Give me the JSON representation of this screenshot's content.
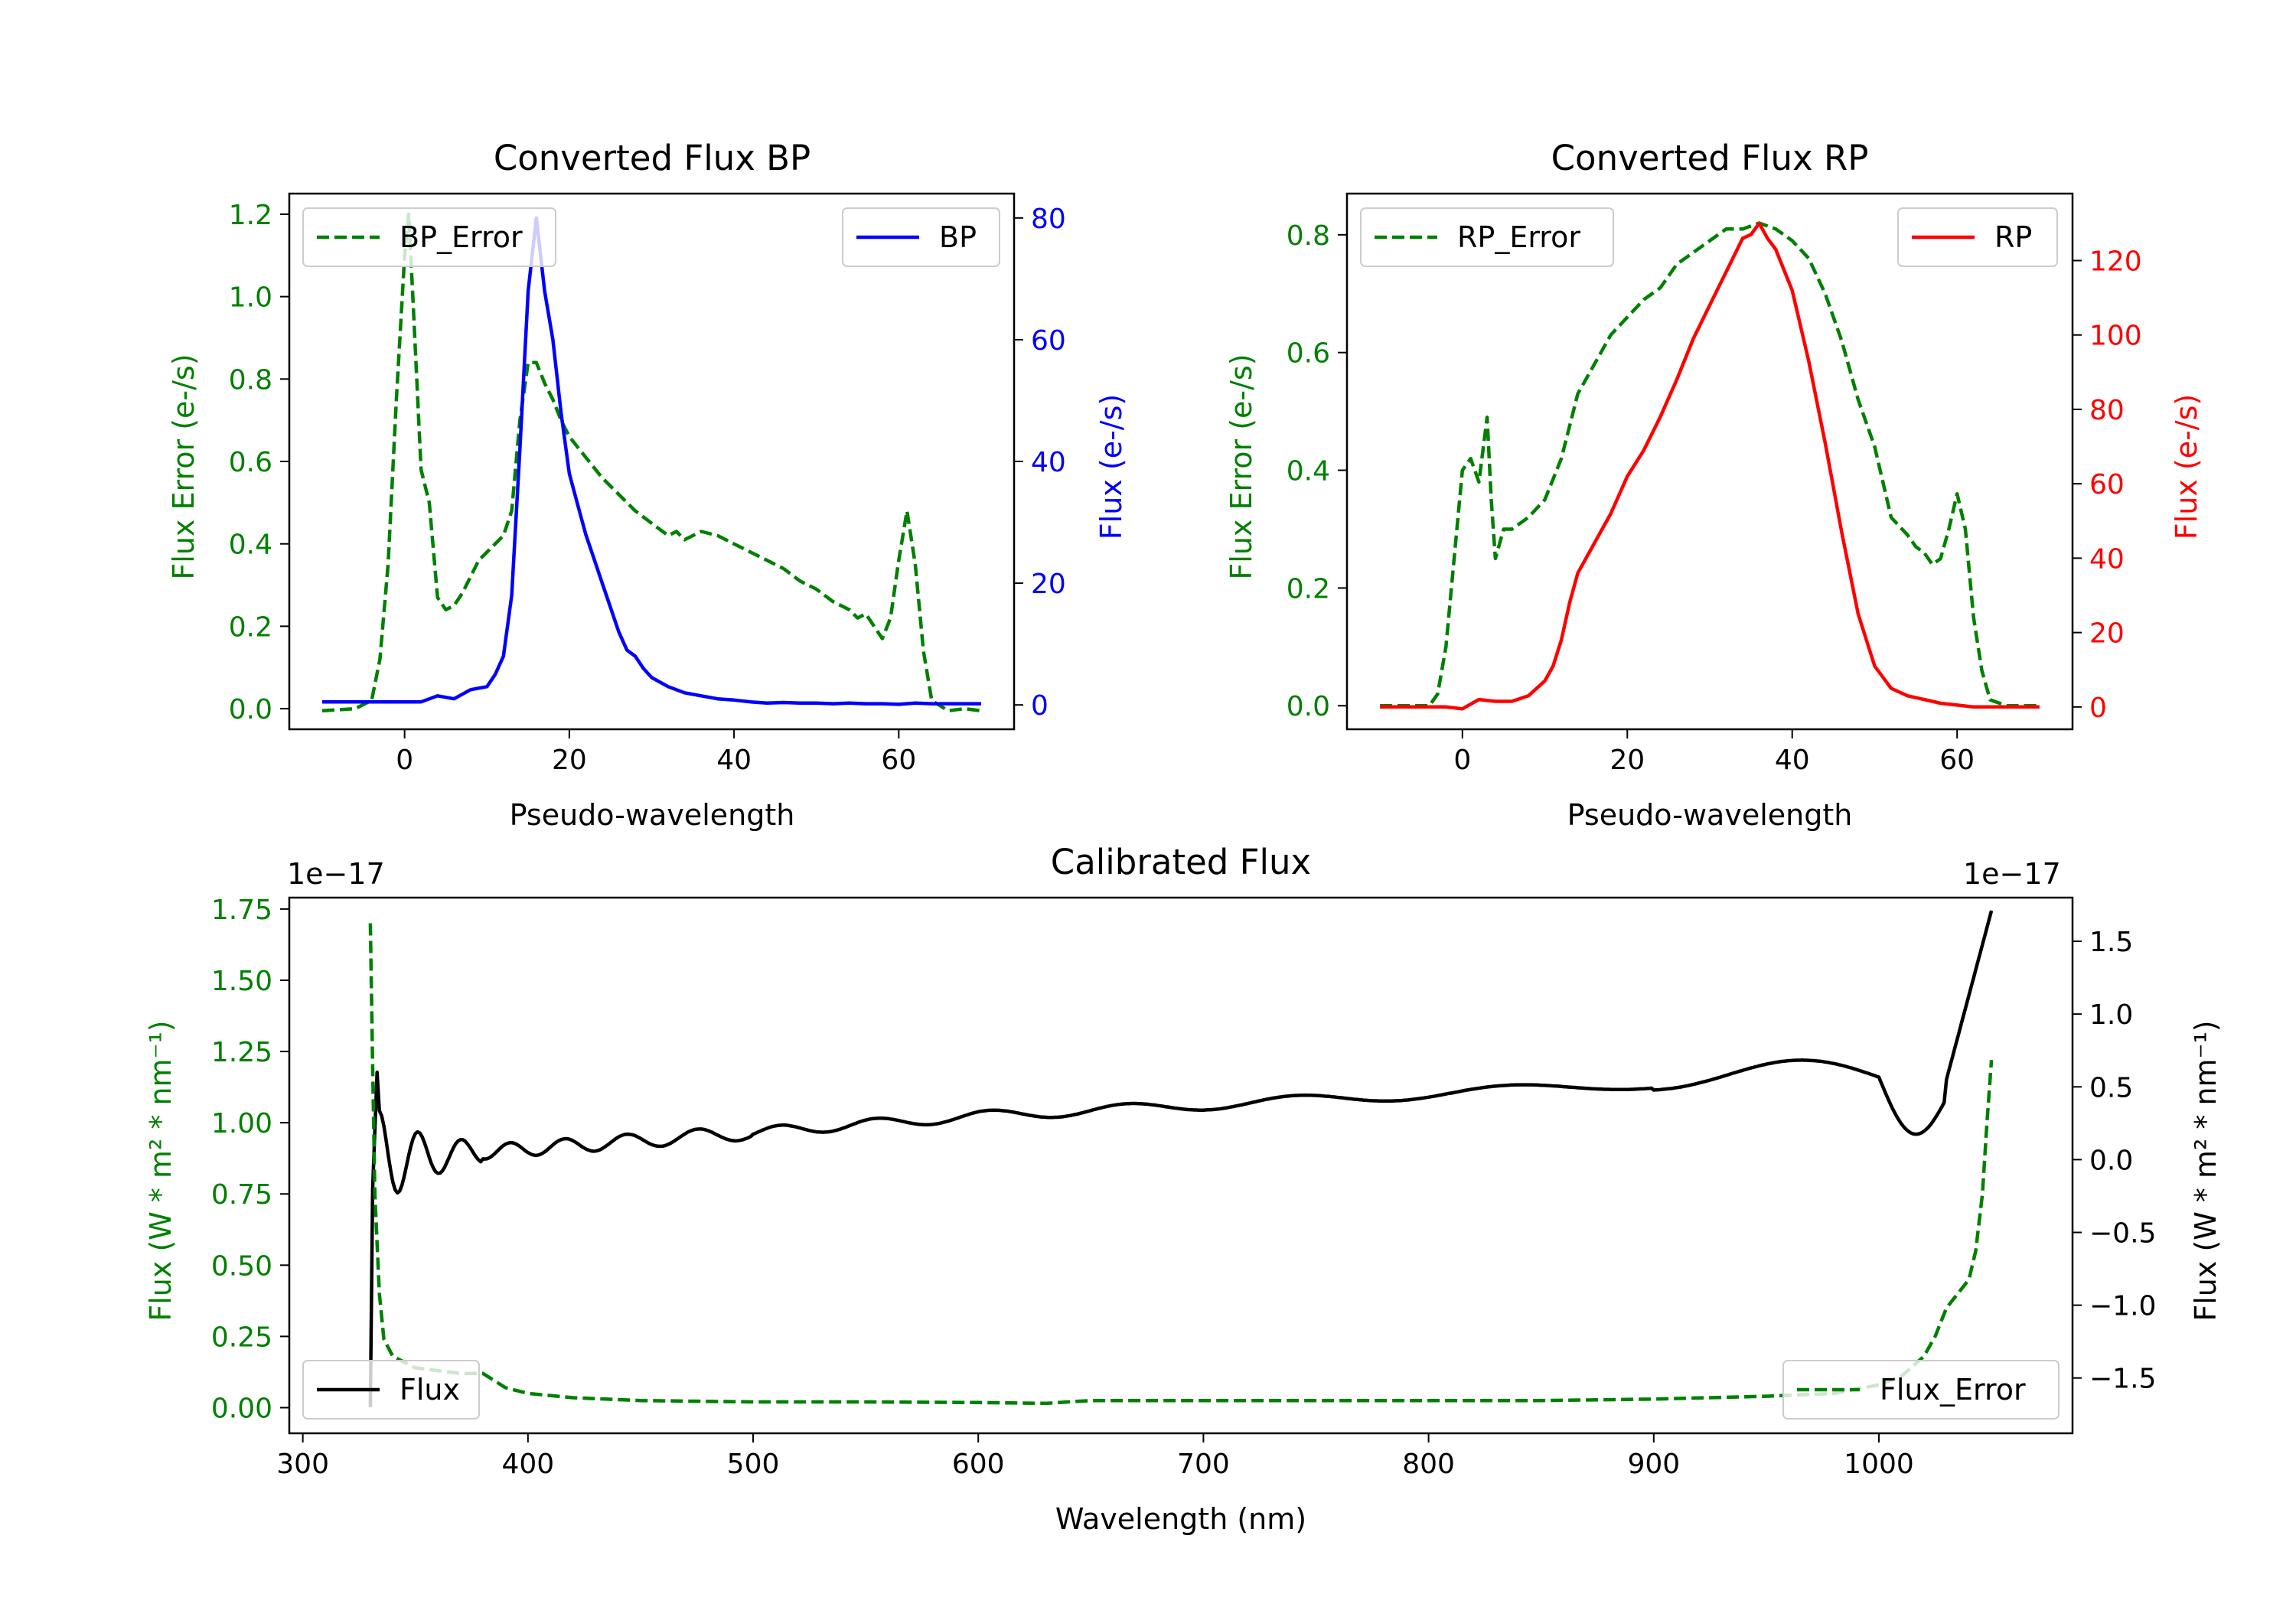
{
  "chart_data": [
    {
      "type": "line",
      "title": "Converted Flux BP",
      "xlabel": "Pseudo-wavelength",
      "ylabel_left": "Flux Error (e-/s)",
      "ylabel_right": "Flux (e-/s)",
      "xlim": [
        -14,
        74
      ],
      "ylim_left": [
        -0.05,
        1.25
      ],
      "ylim_right": [
        -4,
        84
      ],
      "xticks": [
        0,
        20,
        40,
        60
      ],
      "yticks_left": [
        0.0,
        0.2,
        0.4,
        0.6,
        0.8,
        1.0,
        1.2
      ],
      "yticks_right": [
        0,
        20,
        40,
        60,
        80
      ],
      "legend": [
        {
          "label": "BP_Error",
          "position": "upper-left"
        },
        {
          "label": "BP",
          "position": "upper-right"
        }
      ],
      "series": [
        {
          "name": "BP_Error",
          "axis": "left",
          "color": "#008000",
          "style": "dashed",
          "x": [
            -10,
            -6,
            -4,
            -3,
            -2,
            -1,
            0,
            0.5,
            1,
            2,
            3,
            4,
            5,
            6,
            7,
            8,
            9,
            10,
            12,
            13,
            14,
            15,
            16,
            17,
            18,
            19,
            20,
            22,
            24,
            26,
            28,
            30,
            32,
            33,
            34,
            36,
            38,
            40,
            42,
            44,
            46,
            48,
            50,
            52,
            54,
            55,
            56,
            57,
            58,
            59,
            60,
            61,
            62,
            63,
            64,
            66,
            68,
            70
          ],
          "y": [
            -0.005,
            0.0,
            0.02,
            0.12,
            0.35,
            0.75,
            1.1,
            1.2,
            1.0,
            0.58,
            0.5,
            0.27,
            0.24,
            0.25,
            0.28,
            0.32,
            0.36,
            0.38,
            0.42,
            0.48,
            0.7,
            0.84,
            0.84,
            0.79,
            0.75,
            0.7,
            0.66,
            0.61,
            0.56,
            0.52,
            0.48,
            0.45,
            0.42,
            0.43,
            0.41,
            0.43,
            0.42,
            0.4,
            0.38,
            0.36,
            0.34,
            0.31,
            0.29,
            0.26,
            0.24,
            0.22,
            0.23,
            0.2,
            0.17,
            0.22,
            0.36,
            0.48,
            0.35,
            0.14,
            0.02,
            -0.005,
            0.0,
            -0.005
          ]
        },
        {
          "name": "BP",
          "axis": "right",
          "color": "#0000ff",
          "style": "solid",
          "x": [
            -10,
            0,
            2,
            4,
            6,
            8,
            10,
            11,
            12,
            13,
            14,
            15,
            16,
            17,
            18,
            19,
            20,
            21,
            22,
            23,
            24,
            25,
            26,
            27,
            28,
            29,
            30,
            32,
            34,
            36,
            38,
            40,
            42,
            44,
            46,
            48,
            50,
            52,
            54,
            56,
            58,
            60,
            62,
            64,
            66,
            68,
            70
          ],
          "y": [
            0.5,
            0.5,
            0.5,
            1.5,
            1,
            2.5,
            3,
            5,
            8,
            18,
            42,
            68,
            80,
            68,
            60,
            48,
            38,
            33,
            28,
            24,
            20,
            16,
            12,
            9,
            8,
            6,
            4.5,
            3,
            2,
            1.5,
            1,
            0.8,
            0.5,
            0.3,
            0.4,
            0.3,
            0.3,
            0.2,
            0.3,
            0.2,
            0.2,
            0.1,
            0.3,
            0.2,
            0.2,
            0.2,
            0.2
          ]
        }
      ]
    },
    {
      "type": "line",
      "title": "Converted Flux RP",
      "xlabel": "Pseudo-wavelength",
      "ylabel_left": "Flux Error (e-/s)",
      "ylabel_right": "Flux (e-/s)",
      "xlim": [
        -14,
        74
      ],
      "ylim_left": [
        -0.04,
        0.87
      ],
      "ylim_right": [
        -6,
        138
      ],
      "xticks": [
        0,
        20,
        40,
        60
      ],
      "yticks_left": [
        0.0,
        0.2,
        0.4,
        0.6,
        0.8
      ],
      "yticks_right": [
        0,
        20,
        40,
        60,
        80,
        100,
        120
      ],
      "legend": [
        {
          "label": "RP_Error",
          "position": "upper-left"
        },
        {
          "label": "RP",
          "position": "upper-right"
        }
      ],
      "series": [
        {
          "name": "RP_Error",
          "axis": "left",
          "color": "#008000",
          "style": "dashed",
          "x": [
            -10,
            -4,
            -3,
            -2,
            -1,
            0,
            1,
            2,
            3,
            3.5,
            4,
            5,
            6,
            8,
            10,
            12,
            14,
            16,
            18,
            20,
            22,
            24,
            26,
            28,
            30,
            32,
            34,
            36,
            38,
            40,
            42,
            44,
            46,
            48,
            50,
            52,
            54,
            55,
            56,
            57,
            58,
            59,
            60,
            61,
            62,
            63,
            64,
            66,
            70
          ],
          "y": [
            0.0,
            0.0,
            0.02,
            0.1,
            0.25,
            0.4,
            0.42,
            0.38,
            0.49,
            0.35,
            0.25,
            0.3,
            0.3,
            0.32,
            0.35,
            0.42,
            0.53,
            0.58,
            0.63,
            0.66,
            0.69,
            0.71,
            0.75,
            0.77,
            0.79,
            0.81,
            0.81,
            0.82,
            0.81,
            0.79,
            0.76,
            0.7,
            0.62,
            0.52,
            0.44,
            0.32,
            0.29,
            0.27,
            0.26,
            0.24,
            0.25,
            0.3,
            0.36,
            0.3,
            0.15,
            0.06,
            0.01,
            0.0,
            0.0
          ]
        },
        {
          "name": "RP",
          "axis": "right",
          "color": "#ff0000",
          "style": "solid",
          "x": [
            -10,
            -2,
            0,
            2,
            4,
            6,
            8,
            10,
            11,
            12,
            13,
            14,
            15,
            16,
            18,
            20,
            22,
            24,
            26,
            28,
            30,
            32,
            34,
            35,
            36,
            37,
            38,
            40,
            42,
            44,
            46,
            48,
            50,
            52,
            54,
            56,
            58,
            60,
            62,
            64,
            66,
            70
          ],
          "y": [
            0,
            0,
            -0.5,
            2,
            1.5,
            1.5,
            3,
            7,
            11,
            18,
            28,
            36,
            40,
            44,
            52,
            62,
            69,
            78,
            88,
            99,
            108,
            117,
            126,
            127,
            130,
            126,
            123,
            112,
            93,
            71,
            47,
            25,
            11,
            5,
            3,
            2,
            1,
            0.5,
            0,
            0,
            0,
            0
          ]
        }
      ]
    },
    {
      "type": "line",
      "title": "Calibrated Flux",
      "xlabel": "Wavelength (nm)",
      "ylabel_left": "Flux (W * m² * nm⁻¹)",
      "ylabel_right": "Flux (W * m² * nm⁻¹)",
      "offset_left": "1e−17",
      "offset_right": "1e−17",
      "xlim": [
        294,
        1086
      ],
      "ylim_left": [
        -0.09,
        1.79
      ],
      "ylim_right": [
        -1.88,
        1.8
      ],
      "xticks": [
        300,
        400,
        500,
        600,
        700,
        800,
        900,
        1000
      ],
      "yticks_left": [
        0.0,
        0.25,
        0.5,
        0.75,
        1.0,
        1.25,
        1.5,
        1.75
      ],
      "yticks_right": [
        -1.5,
        -1.0,
        -0.5,
        0.0,
        0.5,
        1.0,
        1.5
      ],
      "legend": [
        {
          "label": "Flux",
          "position": "lower-left"
        },
        {
          "label": "Flux_Error",
          "position": "lower-right"
        }
      ],
      "series": [
        {
          "name": "Flux_Error",
          "axis": "left",
          "color": "#008000",
          "style": "dashed",
          "x": [
            330,
            331,
            332,
            334,
            336,
            340,
            350,
            360,
            370,
            380,
            390,
            400,
            420,
            450,
            500,
            550,
            600,
            630,
            640,
            650,
            700,
            750,
            800,
            850,
            900,
            950,
            980,
            1000,
            1010,
            1020,
            1025,
            1030,
            1035,
            1040,
            1043,
            1046,
            1048,
            1050
          ],
          "y": [
            1.7,
            1.2,
            0.75,
            0.4,
            0.24,
            0.18,
            0.14,
            0.13,
            0.12,
            0.12,
            0.07,
            0.05,
            0.035,
            0.025,
            0.02,
            0.02,
            0.018,
            0.015,
            0.02,
            0.025,
            0.025,
            0.025,
            0.025,
            0.025,
            0.03,
            0.04,
            0.05,
            0.08,
            0.11,
            0.18,
            0.25,
            0.35,
            0.4,
            0.45,
            0.55,
            0.75,
            1.0,
            1.22
          ]
        }
      ],
      "flux_series": {
        "name": "Flux",
        "axis": "right",
        "color": "#000000",
        "style": "solid",
        "x_start": 330,
        "x_end": 1050
      }
    }
  ]
}
